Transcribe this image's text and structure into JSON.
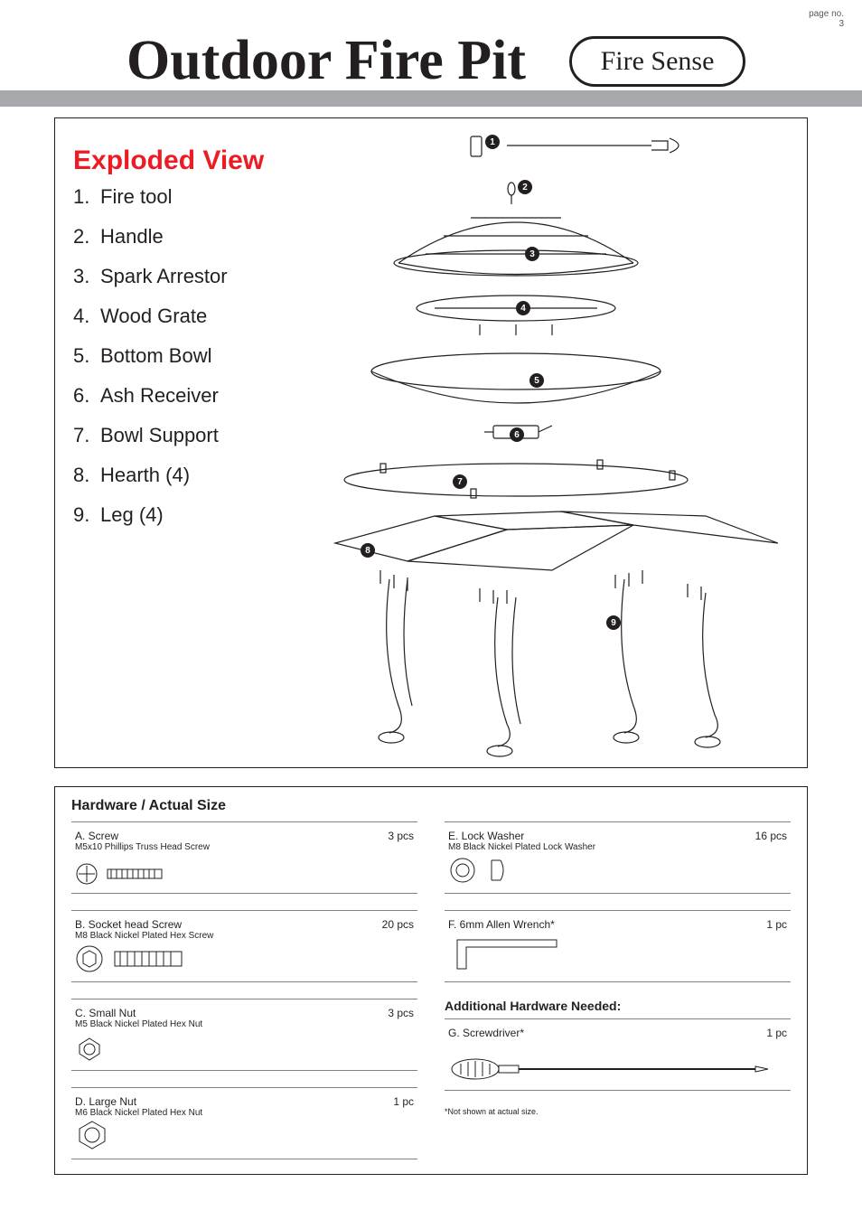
{
  "page": {
    "label": "page no.",
    "number": "3"
  },
  "header": {
    "title": "Outdoor Fire Pit",
    "brand": "Fire Sense",
    "tm": "™"
  },
  "exploded": {
    "heading": "Exploded View",
    "items": [
      {
        "num": "1.",
        "label": "Fire tool"
      },
      {
        "num": "2.",
        "label": "Handle"
      },
      {
        "num": "3.",
        "label": "Spark Arrestor"
      },
      {
        "num": "4.",
        "label": "Wood Grate"
      },
      {
        "num": "5.",
        "label": "Bottom Bowl"
      },
      {
        "num": "6.",
        "label": "Ash Receiver"
      },
      {
        "num": "7.",
        "label": "Bowl Support"
      },
      {
        "num": "8.",
        "label": "Hearth (4)"
      },
      {
        "num": "9.",
        "label": "Leg (4)"
      }
    ],
    "callouts": [
      "1",
      "2",
      "3",
      "4",
      "5",
      "6",
      "7",
      "8",
      "9"
    ],
    "diagram_stroke": "#231f20",
    "diagram_fill": "#ffffff"
  },
  "hardware": {
    "heading": "Hardware / Actual Size",
    "left": [
      {
        "id": "A.",
        "name": "Screw",
        "sub": "M5x10 Phillips Truss Head Screw",
        "qty": "3 pcs",
        "icon": "phillips-screw"
      },
      {
        "id": "B.",
        "name": "Socket head Screw",
        "sub": "M8 Black Nickel Plated Hex Screw",
        "qty": "20 pcs",
        "icon": "hex-screw"
      },
      {
        "id": "C.",
        "name": "Small Nut",
        "sub": "M5 Black Nickel Plated Hex Nut",
        "qty": "3 pcs",
        "icon": "hex-nut-small"
      },
      {
        "id": "D.",
        "name": "Large Nut",
        "sub": "M6 Black Nickel Plated Hex Nut",
        "qty": "1 pc",
        "icon": "hex-nut-large"
      }
    ],
    "right": [
      {
        "id": "E.",
        "name": "Lock Washer",
        "sub": "M8 Black Nickel Plated Lock Washer",
        "qty": "16 pcs",
        "icon": "lock-washer"
      },
      {
        "id": "F.",
        "name": "6mm Allen Wrench*",
        "sub": "",
        "qty": "1  pc",
        "icon": "allen-wrench"
      }
    ],
    "additional_heading": "Additional Hardware Needed:",
    "additional": [
      {
        "id": "G.",
        "name": "Screwdriver*",
        "sub": "",
        "qty": "1 pc",
        "icon": "screwdriver"
      }
    ],
    "footnote": "*Not shown at actual size."
  },
  "colors": {
    "accent": "#ed1c24",
    "band": "#a7a9ac",
    "text": "#231f20",
    "rule": "#808285"
  }
}
